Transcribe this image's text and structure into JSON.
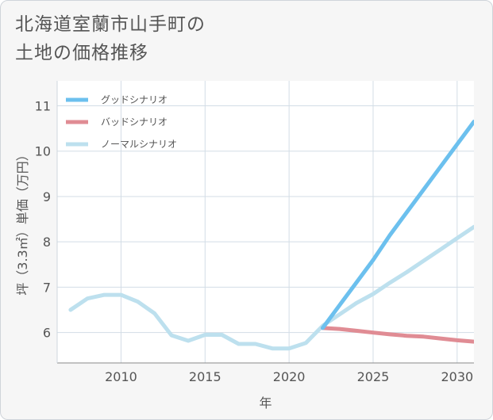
{
  "header": {
    "title_line1": "北海道室蘭市山手町の",
    "title_line2": "土地の価格推移"
  },
  "chart_data": {
    "type": "line",
    "xlabel": "年",
    "ylabel": "坪（3.3㎡）単価（万円）",
    "xlim": [
      2006.2,
      2031
    ],
    "ylim": [
      5.33,
      11.55
    ],
    "x_ticks": [
      2010,
      2015,
      2020,
      2025,
      2030
    ],
    "y_ticks": [
      6,
      7,
      8,
      9,
      10,
      11
    ],
    "grid": true,
    "legend_position": "top-left",
    "series": [
      {
        "name": "グッドシナリオ",
        "color": "#6cc0ee",
        "x": [
          2022,
          2023,
          2024,
          2025,
          2026,
          2027,
          2028,
          2029,
          2030,
          2031
        ],
        "values": [
          6.1,
          6.6,
          7.1,
          7.6,
          8.15,
          8.65,
          9.15,
          9.65,
          10.15,
          10.65
        ]
      },
      {
        "name": "バッドシナリオ",
        "color": "#e08c94",
        "x": [
          2022,
          2023,
          2024,
          2025,
          2026,
          2027,
          2028,
          2029,
          2030,
          2031
        ],
        "values": [
          6.1,
          6.08,
          6.04,
          6.0,
          5.96,
          5.93,
          5.91,
          5.87,
          5.83,
          5.8
        ]
      },
      {
        "name": "ノーマルシナリオ",
        "color": "#bde0ee",
        "x": [
          2007,
          2008,
          2009,
          2010,
          2011,
          2012,
          2013,
          2014,
          2015,
          2016,
          2017,
          2018,
          2019,
          2020,
          2021,
          2022,
          2023,
          2024,
          2025,
          2026,
          2027,
          2028,
          2029,
          2030,
          2031
        ],
        "values": [
          6.5,
          6.75,
          6.83,
          6.83,
          6.68,
          6.42,
          5.94,
          5.82,
          5.95,
          5.95,
          5.75,
          5.75,
          5.65,
          5.65,
          5.77,
          6.15,
          6.4,
          6.65,
          6.85,
          7.1,
          7.33,
          7.58,
          7.83,
          8.08,
          8.33
        ]
      }
    ]
  }
}
